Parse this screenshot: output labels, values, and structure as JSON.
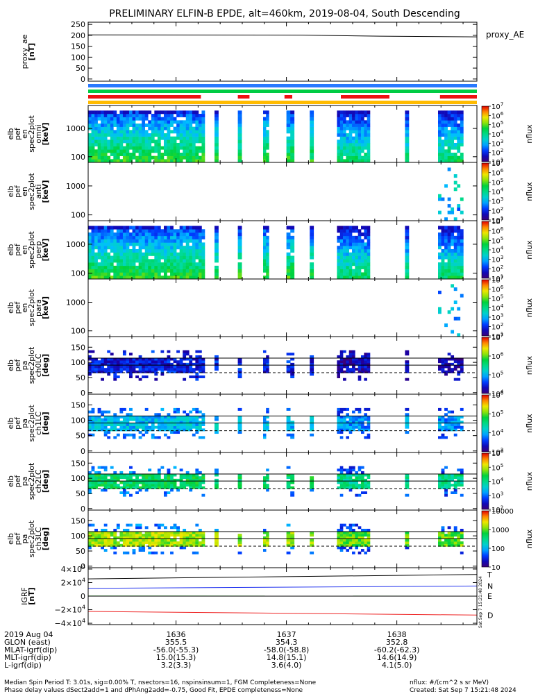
{
  "title": "PRELIMINARY ELFIN-B EPDE, alt=460km, 2019-08-04, South Descending",
  "footer": {
    "line1": "Median Spin Period T: 3.01s, sig=0.00% T, nsectors=16, nspinsinsum=1, FGM Completeness=None",
    "line2": "Phase delay values dSect2add=1 and dPhAng2add=-0.75, Good Fit, EPDE completeness=None",
    "flux_units": "nflux: #/(cm^2 s sr MeV)",
    "created": "Created: Sat Sep  7 15:21:48 2024"
  },
  "side_stamp": "Sat Sep  7 15:21:48 2024",
  "ephemeris": {
    "rows": [
      {
        "label": "2019 Aug 04",
        "values": [
          "1636",
          "1637",
          "1638"
        ]
      },
      {
        "label": "GLON (east)",
        "values": [
          "355.5",
          "354.3",
          "352.8"
        ]
      },
      {
        "label": "MLAT-igrf(dip)",
        "values": [
          "-56.0(-55.3)",
          "-58.0(-58.8)",
          "-60.2(-62.3)"
        ]
      },
      {
        "label": "MLT-igrf(dip)",
        "values": [
          "15.0(15.3)",
          "14.8(15.1)",
          "14.6(14.9)"
        ]
      },
      {
        "label": "L-igrf(dip)",
        "values": [
          "3.2(3.3)",
          "3.6(4.0)",
          "4.1(5.0)"
        ]
      }
    ]
  },
  "chart_data": {
    "type": "heatmap",
    "x_axis": {
      "label": "2019 Aug 04",
      "major_ticks": [
        "1636",
        "1637",
        "1638"
      ],
      "minor_ticks_per_major": 4
    },
    "coverage_intervals": [
      [
        0.0,
        0.3
      ],
      [
        0.325,
        0.335
      ],
      [
        0.385,
        0.395
      ],
      [
        0.45,
        0.465
      ],
      [
        0.51,
        0.53
      ],
      [
        0.57,
        0.58
      ],
      [
        0.64,
        0.725
      ],
      [
        0.815,
        0.825
      ],
      [
        0.9,
        0.965
      ]
    ],
    "status_bars": [
      {
        "color": "#2979ff",
        "intervals": [
          [
            0.0,
            1.0
          ]
        ]
      },
      {
        "color": "#00cc44",
        "intervals": [
          [
            0.0,
            1.0
          ]
        ]
      },
      {
        "color": "#ee1111",
        "intervals": [
          [
            0.0,
            0.29
          ],
          [
            0.385,
            0.415
          ],
          [
            0.505,
            0.525
          ],
          [
            0.65,
            0.775
          ],
          [
            0.905,
            1.0
          ]
        ]
      },
      {
        "color": "#ffbb00",
        "intervals": [
          [
            0.0,
            1.0
          ]
        ]
      }
    ],
    "panels": [
      {
        "kind": "line",
        "ylabel": [
          "proxy_ae",
          "[nT]"
        ],
        "yticks": [
          "250",
          "200",
          "150",
          "100",
          "50",
          "0"
        ],
        "ylim": [
          -10,
          260
        ],
        "series": [
          {
            "name": "proxy_AE",
            "color": "#000000",
            "x": [
              0,
              0.55,
              0.75,
              1.0
            ],
            "y": [
              202,
              201,
              196,
              193
            ]
          }
        ]
      },
      {
        "kind": "spectrogram",
        "ylabel": [
          "elb",
          "pef",
          "en",
          "spec2plot",
          "omni",
          "[keV]"
        ],
        "yscale": "log",
        "yticks": [
          "1000",
          "100"
        ],
        "ylim": [
          63,
          6500
        ],
        "colorbar": {
          "label": "nflux",
          "scale": "log",
          "ticks": [
            "10^7",
            "10^6",
            "10^5",
            "10^4",
            "10^3",
            "10^2",
            "10^1"
          ]
        },
        "pattern": "full"
      },
      {
        "kind": "spectrogram",
        "ylabel": [
          "elb",
          "pef",
          "en",
          "spec2plot",
          "anti",
          "[keV]"
        ],
        "yscale": "log",
        "yticks": [
          "1000",
          "100"
        ],
        "ylim": [
          63,
          6500
        ],
        "colorbar": {
          "label": "nflux",
          "scale": "log",
          "ticks": [
            "10^7",
            "10^6",
            "10^5",
            "10^4",
            "10^3",
            "10^2",
            "10^1"
          ]
        },
        "pattern": "sparse"
      },
      {
        "kind": "spectrogram",
        "ylabel": [
          "elb",
          "pef",
          "en",
          "spec2plot",
          "perp",
          "[keV]"
        ],
        "yscale": "log",
        "yticks": [
          "1000",
          "100"
        ],
        "ylim": [
          63,
          6500
        ],
        "colorbar": {
          "label": "nflux",
          "scale": "log",
          "ticks": [
            "10^7",
            "10^6",
            "10^5",
            "10^4",
            "10^3",
            "10^2",
            "10^1"
          ]
        },
        "pattern": "full"
      },
      {
        "kind": "spectrogram",
        "ylabel": [
          "elb",
          "pef",
          "en",
          "spec2plot",
          "para",
          "[keV]"
        ],
        "yscale": "log",
        "yticks": [
          "1000",
          "100"
        ],
        "ylim": [
          63,
          6500
        ],
        "colorbar": {
          "label": "nflux",
          "scale": "log",
          "ticks": [
            "10^7",
            "10^6",
            "10^5",
            "10^4",
            "10^3",
            "10^2",
            "10^1"
          ]
        },
        "pattern": "sparse"
      },
      {
        "kind": "pitch",
        "ylabel": [
          "elb",
          "pef",
          "pa",
          "spec2plot",
          "ch0LC",
          "[deg]"
        ],
        "yticks": [
          "150",
          "100",
          "50",
          "0"
        ],
        "ylim": [
          -5,
          185
        ],
        "ref_lines": {
          "solid": [
            114,
            91
          ],
          "dashed": [
            66
          ]
        },
        "colorbar": {
          "label": "nflux",
          "scale": "log",
          "ticks": [
            "10^7",
            "10^6",
            "10^5",
            "10^4"
          ]
        },
        "level": 0.15
      },
      {
        "kind": "pitch",
        "ylabel": [
          "elb",
          "pef",
          "pa",
          "spec2plot",
          "ch1LC",
          "[deg]"
        ],
        "yticks": [
          "150",
          "100",
          "50",
          "0"
        ],
        "ylim": [
          -5,
          185
        ],
        "ref_lines": {
          "solid": [
            114,
            91
          ],
          "dashed": [
            66
          ]
        },
        "colorbar": {
          "label": "nflux",
          "scale": "log",
          "ticks": [
            "10^6",
            "10^5",
            "10^4",
            "10^3"
          ]
        },
        "level": 0.35
      },
      {
        "kind": "pitch",
        "ylabel": [
          "elb",
          "pef",
          "pa",
          "spec2plot",
          "ch2LC",
          "[deg]"
        ],
        "yticks": [
          "150",
          "100",
          "50",
          "0"
        ],
        "ylim": [
          -5,
          185
        ],
        "ref_lines": {
          "solid": [
            114,
            91
          ],
          "dashed": [
            66
          ]
        },
        "colorbar": {
          "label": "nflux",
          "scale": "log",
          "ticks": [
            "10^6",
            "10^5",
            "10^4",
            "10^3",
            "10^2"
          ]
        },
        "level": 0.55
      },
      {
        "kind": "pitch",
        "ylabel": [
          "elb",
          "pef",
          "pa",
          "spec2plot",
          "ch3LC",
          "[deg]"
        ],
        "yticks": [
          "150",
          "100",
          "50",
          "0"
        ],
        "ylim": [
          -5,
          185
        ],
        "ref_lines": {
          "solid": [
            114,
            91
          ],
          "dashed": [
            66
          ]
        },
        "colorbar": {
          "label": "nflux",
          "scale": "log",
          "ticks": [
            "10000",
            "1000",
            "100",
            "10"
          ]
        },
        "level": 0.72
      },
      {
        "kind": "line",
        "ylabel": [
          "IGRF",
          "[nT]"
        ],
        "yticks": [
          "4×10^4",
          "2×10^4",
          "0",
          "−2×10^4",
          "−4×10^4"
        ],
        "ylim": [
          -42000,
          42000
        ],
        "series": [
          {
            "name": "T",
            "color": "#000000",
            "x": [
              0,
              1
            ],
            "y": [
              25500,
              32000
            ]
          },
          {
            "name": "N",
            "color": "#2233ee",
            "x": [
              0,
              1
            ],
            "y": [
              11500,
              15000
            ]
          },
          {
            "name": "E",
            "color": "#22bb22",
            "x": [
              0,
              1
            ],
            "y": [
              300,
              0
            ]
          },
          {
            "name": "D",
            "color": "#ee2222",
            "x": [
              0,
              1
            ],
            "y": [
              -22500,
              -28000
            ]
          }
        ]
      }
    ]
  }
}
